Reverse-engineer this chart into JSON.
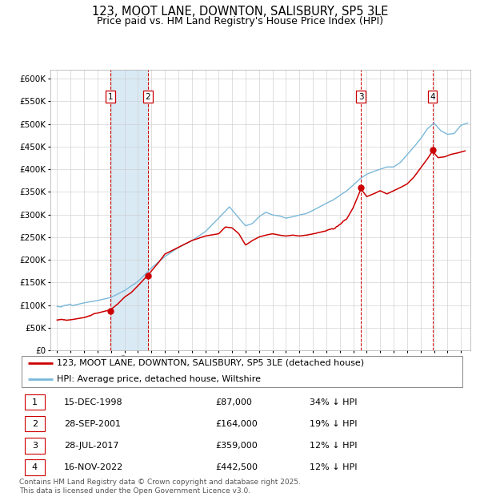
{
  "title": "123, MOOT LANE, DOWNTON, SALISBURY, SP5 3LE",
  "subtitle": "Price paid vs. HM Land Registry's House Price Index (HPI)",
  "legend_property": "123, MOOT LANE, DOWNTON, SALISBURY, SP5 3LE (detached house)",
  "legend_hpi": "HPI: Average price, detached house, Wiltshire",
  "footer": "Contains HM Land Registry data © Crown copyright and database right 2025.\nThis data is licensed under the Open Government Licence v3.0.",
  "sales": [
    {
      "num": 1,
      "date": "15-DEC-1998",
      "price": 87000,
      "pct": "34% ↓ HPI",
      "year": 1998.96
    },
    {
      "num": 2,
      "date": "28-SEP-2001",
      "price": 164000,
      "pct": "19% ↓ HPI",
      "year": 2001.75
    },
    {
      "num": 3,
      "date": "28-JUL-2017",
      "price": 359000,
      "pct": "12% ↓ HPI",
      "year": 2017.57
    },
    {
      "num": 4,
      "date": "16-NOV-2022",
      "price": 442500,
      "pct": "12% ↓ HPI",
      "year": 2022.88
    }
  ],
  "hpi_color": "#7ab8d9",
  "property_color": "#cc0000",
  "shaded_color": "#daeaf5",
  "dashed_line_color": "#cc0000",
  "background_color": "#ffffff",
  "ylim": [
    0,
    620000
  ],
  "yticks": [
    0,
    50000,
    100000,
    150000,
    200000,
    250000,
    300000,
    350000,
    400000,
    450000,
    500000,
    550000,
    600000
  ],
  "xlim_start": 1994.5,
  "xlim_end": 2025.7,
  "title_fontsize": 10.5,
  "subtitle_fontsize": 9,
  "tick_fontsize": 7.5,
  "legend_fontsize": 8,
  "table_fontsize": 8,
  "footer_fontsize": 6.5,
  "hpi_refs": [
    [
      1995.0,
      97000
    ],
    [
      1996.0,
      101000
    ],
    [
      1997.0,
      108000
    ],
    [
      1998.0,
      113000
    ],
    [
      1999.0,
      120000
    ],
    [
      2000.0,
      135000
    ],
    [
      2001.0,
      155000
    ],
    [
      2002.0,
      185000
    ],
    [
      2003.0,
      210000
    ],
    [
      2004.0,
      230000
    ],
    [
      2005.0,
      245000
    ],
    [
      2006.0,
      265000
    ],
    [
      2007.0,
      295000
    ],
    [
      2007.8,
      320000
    ],
    [
      2008.5,
      295000
    ],
    [
      2009.0,
      278000
    ],
    [
      2009.5,
      283000
    ],
    [
      2010.0,
      298000
    ],
    [
      2010.5,
      308000
    ],
    [
      2011.0,
      302000
    ],
    [
      2011.5,
      300000
    ],
    [
      2012.0,
      295000
    ],
    [
      2012.5,
      298000
    ],
    [
      2013.0,
      302000
    ],
    [
      2013.5,
      305000
    ],
    [
      2014.0,
      312000
    ],
    [
      2014.5,
      320000
    ],
    [
      2015.0,
      328000
    ],
    [
      2015.5,
      335000
    ],
    [
      2016.0,
      345000
    ],
    [
      2016.5,
      355000
    ],
    [
      2017.0,
      368000
    ],
    [
      2017.5,
      382000
    ],
    [
      2018.0,
      392000
    ],
    [
      2018.5,
      398000
    ],
    [
      2019.0,
      403000
    ],
    [
      2019.5,
      408000
    ],
    [
      2020.0,
      408000
    ],
    [
      2020.5,
      418000
    ],
    [
      2021.0,
      435000
    ],
    [
      2021.5,
      452000
    ],
    [
      2022.0,
      470000
    ],
    [
      2022.5,
      492000
    ],
    [
      2023.0,
      505000
    ],
    [
      2023.5,
      488000
    ],
    [
      2024.0,
      480000
    ],
    [
      2024.5,
      482000
    ],
    [
      2025.0,
      500000
    ],
    [
      2025.5,
      505000
    ]
  ],
  "prop_refs": [
    [
      1995.0,
      67000
    ],
    [
      1996.0,
      70000
    ],
    [
      1997.0,
      75000
    ],
    [
      1998.0,
      80000
    ],
    [
      1998.96,
      87000
    ],
    [
      1999.5,
      100000
    ],
    [
      2000.0,
      115000
    ],
    [
      2000.5,
      125000
    ],
    [
      2001.0,
      140000
    ],
    [
      2001.75,
      164000
    ],
    [
      2002.5,
      190000
    ],
    [
      2003.0,
      210000
    ],
    [
      2004.0,
      225000
    ],
    [
      2005.0,
      240000
    ],
    [
      2006.0,
      250000
    ],
    [
      2007.0,
      255000
    ],
    [
      2007.5,
      270000
    ],
    [
      2008.0,
      268000
    ],
    [
      2008.5,
      255000
    ],
    [
      2009.0,
      230000
    ],
    [
      2009.5,
      240000
    ],
    [
      2010.0,
      248000
    ],
    [
      2010.5,
      252000
    ],
    [
      2011.0,
      255000
    ],
    [
      2011.5,
      252000
    ],
    [
      2012.0,
      250000
    ],
    [
      2012.5,
      252000
    ],
    [
      2013.0,
      250000
    ],
    [
      2013.5,
      252000
    ],
    [
      2014.0,
      255000
    ],
    [
      2014.5,
      258000
    ],
    [
      2015.0,
      262000
    ],
    [
      2015.5,
      268000
    ],
    [
      2016.0,
      280000
    ],
    [
      2016.5,
      292000
    ],
    [
      2017.0,
      318000
    ],
    [
      2017.57,
      359000
    ],
    [
      2018.0,
      342000
    ],
    [
      2018.5,
      348000
    ],
    [
      2019.0,
      355000
    ],
    [
      2019.5,
      348000
    ],
    [
      2020.0,
      355000
    ],
    [
      2020.5,
      362000
    ],
    [
      2021.0,
      370000
    ],
    [
      2021.5,
      385000
    ],
    [
      2022.0,
      405000
    ],
    [
      2022.5,
      425000
    ],
    [
      2022.88,
      442500
    ],
    [
      2023.3,
      428000
    ],
    [
      2023.8,
      430000
    ],
    [
      2024.2,
      435000
    ],
    [
      2024.7,
      438000
    ],
    [
      2025.3,
      443000
    ]
  ]
}
